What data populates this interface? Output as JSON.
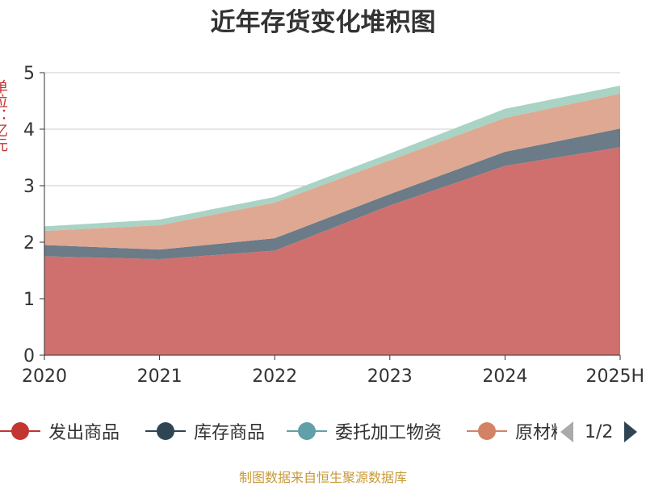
{
  "title": "近年存货变化堆积图",
  "yaxis_name": "单位：亿元",
  "source": "制图数据来自恒生聚源数据库",
  "legend_pager": "1/2",
  "legend": [
    {
      "name": "发出商品",
      "color": "#c23531"
    },
    {
      "name": "库存商品",
      "color": "#2f4554"
    },
    {
      "name": "委托加工物资",
      "color": "#61a0a8"
    },
    {
      "name": "原材料",
      "color": "#d48265"
    }
  ],
  "chart_data": {
    "type": "area",
    "stacked": true,
    "categories": [
      "2020",
      "2021",
      "2022",
      "2023",
      "2024",
      "2025H"
    ],
    "ylim": [
      0,
      5
    ],
    "yticks": [
      0,
      1,
      2,
      3,
      4,
      5
    ],
    "grid": true,
    "legend_position": "bottom",
    "series": [
      {
        "name": "发出商品",
        "color": "#d0706e",
        "values": [
          1.75,
          1.7,
          1.85,
          2.65,
          3.35,
          3.68
        ]
      },
      {
        "name": "库存商品",
        "color": "#6b7b87",
        "values": [
          0.2,
          0.17,
          0.22,
          0.2,
          0.25,
          0.33
        ]
      },
      {
        "name": "原材料",
        "color": "#dfa892",
        "values": [
          0.25,
          0.43,
          0.63,
          0.6,
          0.6,
          0.62
        ]
      },
      {
        "name": "委托加工物资",
        "color": "#a9d3c4",
        "values": [
          0.08,
          0.1,
          0.1,
          0.12,
          0.16,
          0.14
        ]
      }
    ]
  }
}
